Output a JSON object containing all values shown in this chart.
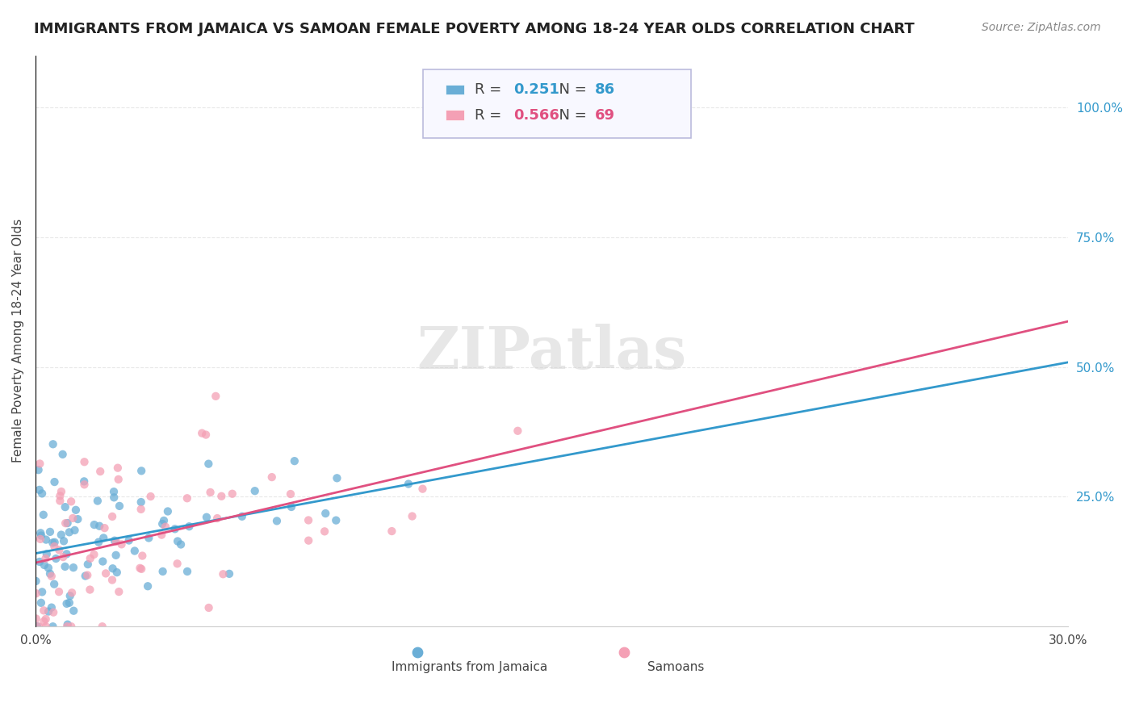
{
  "title": "IMMIGRANTS FROM JAMAICA VS SAMOAN FEMALE POVERTY AMONG 18-24 YEAR OLDS CORRELATION CHART",
  "source": "Source: ZipAtlas.com",
  "ylabel": "Female Poverty Among 18-24 Year Olds",
  "xlabel": "",
  "xlim": [
    0.0,
    0.3
  ],
  "ylim": [
    0.0,
    1.1
  ],
  "xticks": [
    0.0,
    0.05,
    0.1,
    0.15,
    0.2,
    0.25,
    0.3
  ],
  "xticklabels": [
    "0.0%",
    "",
    "",
    "",
    "",
    "",
    "30.0%"
  ],
  "yticks_right": [
    0.25,
    0.5,
    0.75,
    1.0
  ],
  "ytick_labels_right": [
    "25.0%",
    "50.0%",
    "75.0%",
    "100.0%"
  ],
  "series1_label": "Immigrants from Jamaica",
  "series1_color": "#6aaed6",
  "series1_R": "0.251",
  "series1_N": "86",
  "series2_label": "Samoans",
  "series2_color": "#f4a0b5",
  "series2_R": "0.566",
  "series2_N": "69",
  "watermark": "ZIPatlas",
  "watermark_color": "#d0d0d0",
  "background_color": "#ffffff",
  "grid_color": "#e8e8e8",
  "seed1": 42,
  "seed2": 99,
  "legend_box_color": "#f0f0ff",
  "legend_border_color": "#aaaacc"
}
